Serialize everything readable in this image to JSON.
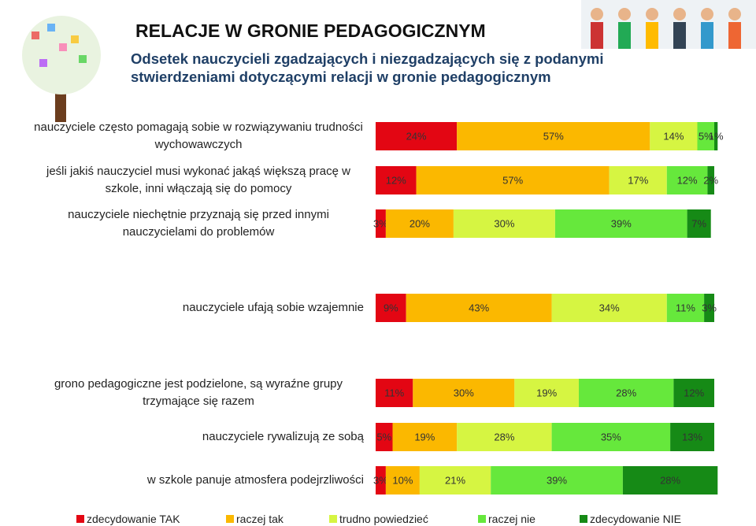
{
  "chart_data": {
    "type": "stacked-bar-horizontal",
    "title": "RELACJE W GRONIE PEDAGOGICZNYM",
    "subtitle": "Odsetek nauczycieli zgadzających i niezgadzających się z podanymi stwierdzeniami dotyczącymi relacji w gronie pedagogicznym",
    "categories": [
      "nauczyciele często pomagają sobie w rozwiązywaniu trudności wychowawczych",
      "jeśli jakiś nauczyciel musi wykonać jakąś większą pracę w szkole, inni włączają się do pomocy",
      "nauczyciele niechętnie przyznają się przed innymi nauczycielami do problemów",
      "nauczyciele ufają sobie wzajemnie",
      "grono pedagogiczne jest podzielone, są wyraźne grupy trzymające się razem",
      "nauczyciele rywalizują ze sobą",
      "w szkole panuje atmosfera podejrzliwości"
    ],
    "series": [
      {
        "name": "zdecydowanie TAK",
        "color": "#e30613",
        "values": [
          24,
          12,
          3,
          9,
          11,
          5,
          3
        ],
        "value_labels": [
          "24%",
          "12%",
          "3%",
          "9%",
          "11%",
          "5%",
          "3%"
        ]
      },
      {
        "name": "raczej tak",
        "color": "#fbb800",
        "values": [
          57,
          57,
          20,
          43,
          30,
          19,
          10
        ],
        "value_labels": [
          "57%",
          "57%",
          "20%",
          "43%",
          "30%",
          "19%",
          "10%"
        ]
      },
      {
        "name": "trudno powiedzieć",
        "color": "#d6f542",
        "values": [
          14,
          17,
          30,
          34,
          19,
          28,
          21
        ],
        "value_labels": [
          "14%",
          "17%",
          "30%",
          "34%",
          "19%",
          "28%",
          "21%"
        ]
      },
      {
        "name": "raczej nie",
        "color": "#66e83c",
        "values": [
          5,
          12,
          39,
          11,
          28,
          35,
          39
        ],
        "value_labels": [
          "5%",
          "12%",
          "39%",
          "11%",
          "28%",
          "35%",
          "39%"
        ]
      },
      {
        "name": "zdecydowanie NIE",
        "color": "#168a16",
        "values": [
          1,
          2,
          7,
          3,
          12,
          13,
          28
        ],
        "value_labels": [
          "1%",
          "2%",
          "7%",
          "3%",
          "12%",
          "13%",
          "28%"
        ]
      }
    ]
  }
}
